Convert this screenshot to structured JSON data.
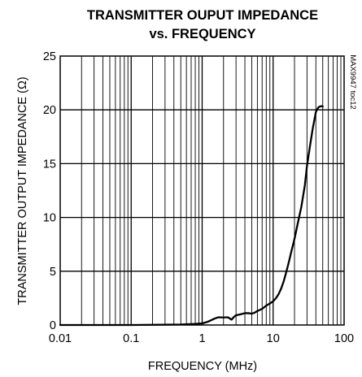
{
  "chart_data": {
    "type": "line",
    "title_line1": "TRANSMITTER OUPUT IMPEDANCE",
    "title_line2": "vs. FREQUENCY",
    "xlabel": "FREQUENCY (MHz)",
    "ylabel": "TRANSMITTER OUTPUT IMPEDANCE (Ω)",
    "x_scale": "log",
    "xlim": [
      0.01,
      100
    ],
    "ylim": [
      0,
      25
    ],
    "x_ticks": [
      0.01,
      0.1,
      1,
      10,
      100
    ],
    "x_tick_labels": [
      "0.01",
      "0.1",
      "1",
      "10",
      "100"
    ],
    "y_ticks": [
      0,
      5,
      10,
      15,
      20,
      25
    ],
    "y_tick_labels": [
      "0",
      "5",
      "10",
      "15",
      "20",
      "25"
    ],
    "grid": true,
    "annotation": "MAX9947 toc12",
    "series": [
      {
        "x": [
          0.01,
          0.05,
          0.1,
          0.2,
          0.5,
          0.8,
          1.0,
          1.2,
          1.5,
          1.7,
          2.0,
          2.3,
          2.6,
          2.8,
          3.0,
          3.5,
          4.0,
          4.5,
          5.0,
          5.5,
          6.0,
          7.0,
          8.0,
          9.0,
          10,
          11,
          12,
          13,
          14,
          15,
          16,
          17,
          18,
          20,
          22,
          25,
          28,
          30,
          33,
          36,
          40,
          43,
          45,
          48,
          50
        ],
        "y": [
          0.0,
          0.0,
          0.0,
          0.02,
          0.05,
          0.1,
          0.15,
          0.3,
          0.6,
          0.72,
          0.7,
          0.72,
          0.5,
          0.75,
          0.9,
          1.0,
          1.1,
          1.1,
          1.05,
          1.15,
          1.3,
          1.5,
          1.8,
          2.0,
          2.2,
          2.5,
          2.9,
          3.4,
          4.0,
          4.7,
          5.4,
          6.1,
          6.8,
          8.0,
          9.3,
          11.0,
          13.0,
          14.8,
          16.6,
          18.2,
          19.8,
          20.2,
          20.3,
          20.35,
          20.3
        ]
      }
    ]
  }
}
